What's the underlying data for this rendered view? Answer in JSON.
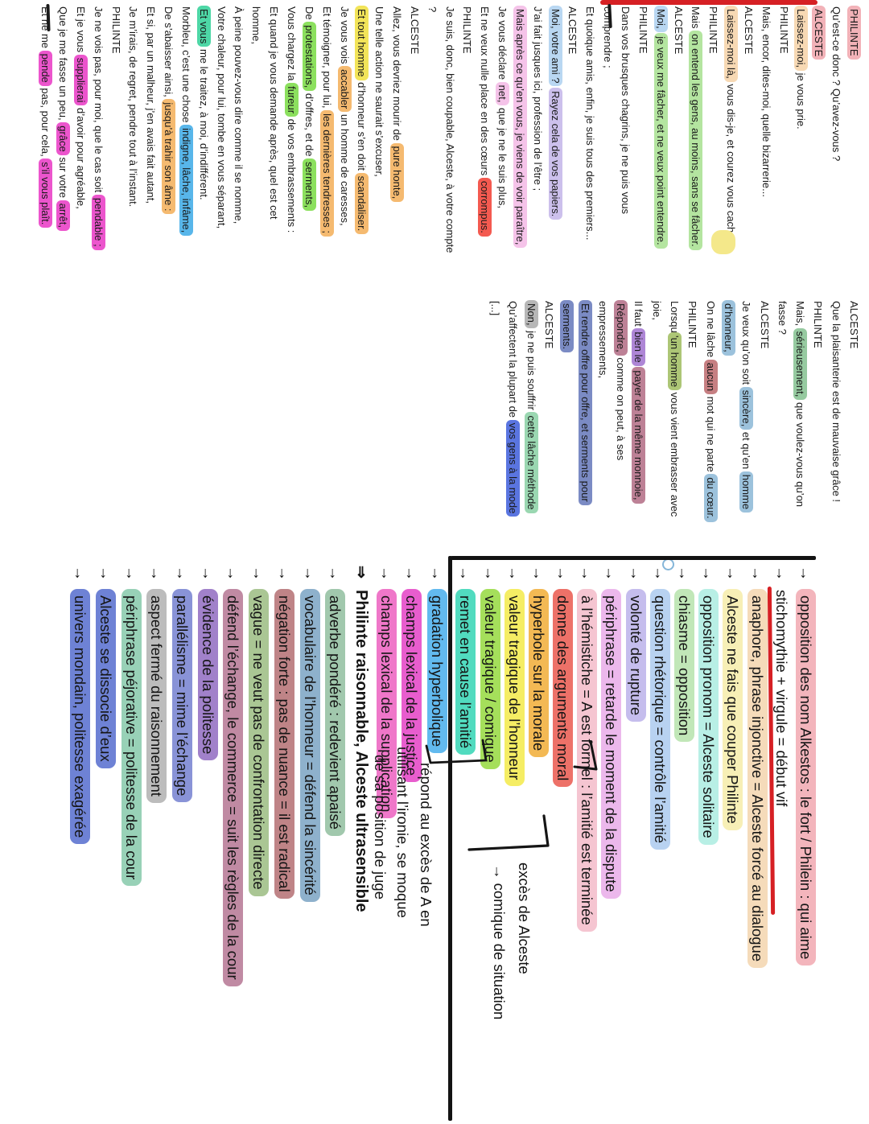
{
  "palette": {
    "hlPinkSpeaker": "#f2b2b8",
    "hlPeach": "#f7d9b4",
    "hlGreen": "#b4e5a0",
    "hlLightBlue": "#b9d7f2",
    "hlLilac": "#ccc0ec",
    "hlPinkLight": "#f5c3e9",
    "hlRed": "#f45a50",
    "hlOrange": "#f5ba70",
    "hlYellowStrong": "#f2e459",
    "hlGreenBright": "#8ce05e",
    "hlSpringGreen": "#4ed7a6",
    "hlSkyBlue": "#58b6ea",
    "hlMagenta": "#ec55cd",
    "hlGreen2": "#96caa0",
    "hlSteelBlue": "#9cc2dc",
    "hlDustyRed": "#c67f82",
    "hlOlive": "#adc676",
    "hlPurple": "#ae86d6",
    "hlMauve": "#bd8196",
    "hlSlateBlue": "#7b8bc4",
    "hlGray": "#b7b7b7",
    "hlSeafoam": "#9ad7b1",
    "hlRoyalBlue": "#5a75e0",
    "annPink": "#f3b5bc",
    "annPeach": "#f5dbba",
    "annPaleYellow": "#f7efb6",
    "annPaleCyan": "#b8efe5",
    "annPaleGreen": "#c1e7b8",
    "annPaleBlue": "#b8d2f1",
    "annLavender": "#c5bded",
    "annOrchid": "#ecb8ec",
    "annLightPink": "#f5c5d1",
    "annSalmon": "#ed7168",
    "annAmber": "#f3b954",
    "annYellow": "#f5ed64",
    "annLime": "#a5df5b",
    "annTurquoise": "#51dbbf",
    "annSky": "#62baef",
    "annMagenta": "#e85dce",
    "annPink2": "#ef77c9",
    "annSage": "#a1c8ad",
    "annSteel": "#8eb1cc",
    "annDustyRose": "#bf8487",
    "annSage2": "#aac694",
    "annMauve": "#c08aa3",
    "annPurple": "#a181ca",
    "annPeriwinkle": "#8993d7",
    "annGray": "#bcbcbc",
    "annMint": "#98d1b7",
    "annIndigo": "#6e82d5"
  },
  "accents": {
    "red_line": "#d62024",
    "divider": "#131313"
  },
  "play": {
    "col1": [
      [
        [
          "PHILINTE",
          "hlPinkSpeaker"
        ]
      ],
      [
        [
          "Qu’est-ce donc ? Qu’avez-vous ?",
          null
        ]
      ],
      [
        [
          "ALCESTE",
          "hlPinkSpeaker"
        ]
      ],
      [
        [
          "Laissez-moi,",
          "hlPeach"
        ],
        [
          " je vous prie.",
          null
        ]
      ],
      [
        [
          "PHILINTE",
          null
        ]
      ],
      [
        [
          "Mais, encor, dites-moi, quelle bizarrerie...",
          null
        ]
      ],
      [
        [
          "ALCESTE",
          null
        ]
      ],
      [
        [
          "Laissez-moi là,",
          "hlPeach"
        ],
        [
          " vous dis-je, et courez vous cacher.",
          null
        ]
      ],
      [
        [
          "PHILINTE",
          null
        ]
      ],
      [
        [
          "Mais ",
          null
        ],
        [
          "on entend les gens, au moins, sans se fâcher.",
          "hlGreen"
        ]
      ],
      [
        [
          "ALCESTE",
          null
        ]
      ],
      [
        [
          "Moi,",
          "hlLightBlue"
        ],
        [
          " ",
          null
        ],
        [
          "je veux me fâcher, et ne veux point entendre.",
          "hlGreen"
        ]
      ],
      [
        [
          "PHILINTE",
          null
        ]
      ],
      [
        [
          "Dans vos brusques chagrins, je ne puis vous",
          null
        ]
      ],
      [
        [
          "comprendre ;",
          null
        ]
      ],
      [
        [
          "Et quoique amis, enfin, je suis tous des premiers...",
          null
        ]
      ],
      [
        [
          "ALCESTE",
          null
        ]
      ],
      [
        [
          "Moi, votre ami ?",
          "hlLightBlue"
        ],
        [
          " ",
          null
        ],
        [
          "Rayez cela de vos papiers.",
          "hlLilac"
        ]
      ],
      [
        [
          "J’ai fait jusques ici, profession de l’être ;",
          null
        ]
      ],
      [
        [
          "Mais après ce qu’en vous, je viens de voir paraître,",
          "hlPinkLight"
        ]
      ],
      [
        [
          "Je vous déclare ",
          null
        ],
        [
          "net,",
          "hlPinkLight"
        ],
        [
          " que je ne le suis plus,",
          null
        ]
      ],
      [
        [
          "Et ne veux nulle place en des cœurs ",
          null
        ],
        [
          "corrompus.",
          "hlRed"
        ]
      ],
      [
        [
          "PHILINTE",
          null
        ]
      ],
      [
        [
          "Je suis, donc, bien coupable, Alceste, à votre compte",
          null
        ]
      ],
      [
        [
          "?",
          null
        ]
      ],
      [
        [
          "ALCESTE",
          null
        ]
      ],
      [
        [
          "Allez, vous devriez mourir de ",
          null
        ],
        [
          "pure honte,",
          "hlOrange"
        ]
      ],
      [
        [
          "Une telle action ne saurait s’excuser,",
          null
        ]
      ],
      [
        [
          "Et tout homme",
          "hlYellowStrong"
        ],
        [
          " d’honneur s’en doit ",
          null
        ],
        [
          "scandaliser.",
          "hlOrange"
        ]
      ],
      [
        [
          "Je vous vois ",
          null
        ],
        [
          "accabler",
          "hlOrange"
        ],
        [
          " un homme de caresses,",
          null
        ]
      ],
      [
        [
          "Et témoigner, pour lui, ",
          null
        ],
        [
          "les dernières tendresses ;",
          "hlOrange"
        ]
      ],
      [
        [
          "De ",
          null
        ],
        [
          "protestations,",
          "hlGreenBright"
        ],
        [
          " d’offres, et de ",
          null
        ],
        [
          "serments,",
          "hlGreenBright"
        ]
      ],
      [
        [
          "Vous chargez la ",
          null
        ],
        [
          "fureur",
          "hlGreenBright"
        ],
        [
          " de vos embrassements :",
          null
        ]
      ],
      [
        [
          "Et quand je vous demande après, quel est cet",
          null
        ]
      ],
      [
        [
          "homme,",
          null
        ]
      ],
      [
        [
          "À peine pouvez-vous dire comme il se nomme,",
          null
        ]
      ],
      [
        [
          "Votre chaleur, pour lui, tombe en vous séparant,",
          null
        ]
      ],
      [
        [
          "Et vous",
          "hlSpringGreen"
        ],
        [
          " me le traitez, à moi, d’indifférent.",
          null
        ]
      ],
      [
        [
          "Morbleu, c’est une chose ",
          null
        ],
        [
          "indigne, lâche, infâme,",
          "hlSkyBlue"
        ]
      ],
      [
        [
          "De s’abaisser ainsi, ",
          null
        ],
        [
          "jusqu’à trahir son âme :",
          "hlOrange"
        ]
      ],
      [
        [
          "Et si, par un malheur, j’en avais fait autant,",
          null
        ]
      ],
      [
        [
          "Je m’irais, de regret, pendre tout à l’instant.",
          null
        ]
      ],
      [
        [
          "PHILINTE",
          null
        ]
      ],
      [
        [
          "Je ne vois pas, pour moi, que le cas soit ",
          null
        ],
        [
          "pendable ;",
          "hlMagenta"
        ]
      ],
      [
        [
          "Et je vous ",
          null
        ],
        [
          "supplierai",
          "hlMagenta"
        ],
        [
          " d’avoir pour agréable,",
          null
        ]
      ],
      [
        [
          "Que je me fasse un peu, ",
          null
        ],
        [
          "grâce",
          "hlMagenta"
        ],
        [
          " sur votre ",
          null
        ],
        [
          "arrêt,",
          "hlMagenta"
        ]
      ],
      [
        [
          "Et ne me ",
          null
        ],
        [
          "pende",
          "hlMagenta"
        ],
        [
          " pas, pour cela, ",
          null
        ],
        [
          "s’il vous plaît.",
          "hlMagenta"
        ]
      ]
    ],
    "col2": [
      [
        [
          "ALCESTE",
          null
        ]
      ],
      [
        [
          "Que la plaisanterie est de mauvaise grâce !",
          null
        ]
      ],
      [
        [
          "PHILINTE",
          null
        ]
      ],
      [
        [
          "Mais, ",
          null
        ],
        [
          "sérieusement,",
          "hlGreen2"
        ],
        [
          " que voulez-vous qu’on",
          null
        ]
      ],
      [
        [
          "fasse ?",
          null
        ]
      ],
      [
        [
          "ALCESTE",
          null
        ]
      ],
      [
        [
          "Je veux qu’on soit ",
          null
        ],
        [
          "sincère,",
          "hlSteelBlue"
        ],
        [
          " et qu’en ",
          null
        ],
        [
          "homme",
          "hlSteelBlue"
        ]
      ],
      [
        [
          "d’honneur,",
          "hlSteelBlue"
        ]
      ],
      [
        [
          "On ne lâche ",
          null
        ],
        [
          "aucun",
          "hlDustyRed"
        ],
        [
          " mot qui ne parte ",
          null
        ],
        [
          "du cœur.",
          "hlSteelBlue"
        ]
      ],
      [
        [
          "PHILINTE",
          null
        ]
      ],
      [
        [
          "Lorsqu",
          null
        ],
        [
          "’un homme",
          "hlOlive"
        ],
        [
          " vous vient embrasser avec",
          null
        ]
      ],
      [
        [
          "joie,",
          null
        ]
      ],
      [
        [
          "Il faut ",
          null
        ],
        [
          "bien le",
          "hlPurple"
        ],
        [
          " ",
          null
        ],
        [
          "payer de la même monnoie,",
          "hlMauve"
        ]
      ],
      [
        [
          "Répondre,",
          "hlMauve"
        ],
        [
          " comme on peut, à ses",
          null
        ]
      ],
      [
        [
          "empressements,",
          null
        ]
      ],
      [
        [
          "Et rendre offre pour offre, et serments pour",
          "hlSlateBlue"
        ]
      ],
      [
        [
          "serments.",
          "hlSlateBlue"
        ]
      ],
      [
        [
          "ALCESTE",
          null
        ]
      ],
      [
        [
          "Non,",
          "hlGray"
        ],
        [
          " je ne puis souffrir ",
          null
        ],
        [
          "cette lâche méthode",
          "hlSeafoam"
        ]
      ],
      [
        [
          "Qu’affectent la plupart de ",
          null
        ],
        [
          "vos gens à la mode",
          "hlRoyalBlue"
        ]
      ],
      [
        [
          "[...]",
          null
        ]
      ]
    ]
  },
  "annotations": {
    "upper": [
      {
        "a": "→",
        "t": "opposition des nom Alkestos : le fort / Philein : qui aime",
        "c": "annPink"
      },
      {
        "a": "→",
        "t": "stichomythie + virgule = début vif",
        "c": null,
        "u": true
      },
      {
        "a": "→",
        "t": "anaphore, phrase injonctive = Alceste forcé au dialogue",
        "c": "annPeach"
      },
      {
        "a": "→",
        "t": "Alceste ne fais que couper Philinte",
        "c": "annPaleYellow"
      },
      {
        "a": "→",
        "t": "opposition pronom = Alceste solitaire",
        "c": "annPaleCyan"
      },
      {
        "a": "→",
        "t": "chiasme = opposition",
        "c": "annPaleGreen"
      },
      {
        "a": "→",
        "t": "question rhétorique = contrôle l’amitié",
        "c": "annPaleBlue"
      },
      {
        "a": "→",
        "t": "volonté de rupture",
        "c": "annLavender"
      },
      {
        "a": "→",
        "t": "périphrase = retarde le moment de la dispute",
        "c": "annOrchid"
      },
      {
        "a": "→",
        "t": "à l’hémistiche = A est formel : l’amitié est terminée",
        "c": "annLightPink"
      },
      {
        "a": "→",
        "t": "donne des arguments moral",
        "c": "annSalmon"
      },
      {
        "a": "→",
        "t": "hyperbole sur la morale",
        "c": "annAmber"
      },
      {
        "a": "→",
        "t": "valeur tragique de l’honneur",
        "c": "annYellow"
      },
      {
        "a": "→",
        "t": "valeur tragique / comique",
        "c": "annLime"
      },
      {
        "a": "→",
        "t": "remet en cause l’amitié",
        "c": "annTurquoise"
      }
    ],
    "lower": [
      {
        "a": "→",
        "t": "gradation hyperbolique",
        "c": "annSky"
      },
      {
        "a": "→",
        "t": "champs lexical de la justice",
        "c": "annMagenta"
      },
      {
        "a": "→",
        "t": "champs lexical de la supplication",
        "c": "annPink2"
      },
      {
        "a": "⇒",
        "t": "Philinte raisonnable, Alceste ultrasensible",
        "c": null,
        "b": true
      },
      {
        "a": "→",
        "t": "adverbe pondéré : redevient apaisé",
        "c": "annSage"
      },
      {
        "a": "→",
        "t": "vocabulaire de l’honneur = défend la sincérité",
        "c": "annSteel"
      },
      {
        "a": "→",
        "t": "négation forte : pas de nuance = il est radical",
        "c": "annDustyRose"
      },
      {
        "a": "→",
        "t": "vague = ne veut pas de confrontation directe",
        "c": "annSage2"
      },
      {
        "a": "→",
        "t": "défend l’échange, le commerce = suit les règles de la cour",
        "c": "annMauve"
      },
      {
        "a": "→",
        "t": "évidence de la politesse",
        "c": "annPurple"
      },
      {
        "a": "→",
        "t": "parallélisme = mime l’échange",
        "c": "annPeriwinkle"
      },
      {
        "a": "→",
        "t": "aspect fermé du raisonnement",
        "c": "annGray"
      },
      {
        "a": "→",
        "t": "périphrase péjorative = politesse de la cour",
        "c": "annMint"
      },
      {
        "a": "→",
        "t": "Alceste se dissocie d’eux",
        "c": "annIndigo"
      },
      {
        "a": "→",
        "t": "univers mondain, politesse exagérée",
        "c": "annIndigo"
      }
    ]
  },
  "side_notes": {
    "exces_line1": "excès de Alceste",
    "exces_line2": "→ comique de situation",
    "repond_line1": "répond au excès de A en",
    "repond_line2": "utilisant l’ironie, se moque",
    "repond_line3": "de sa position de juge"
  }
}
